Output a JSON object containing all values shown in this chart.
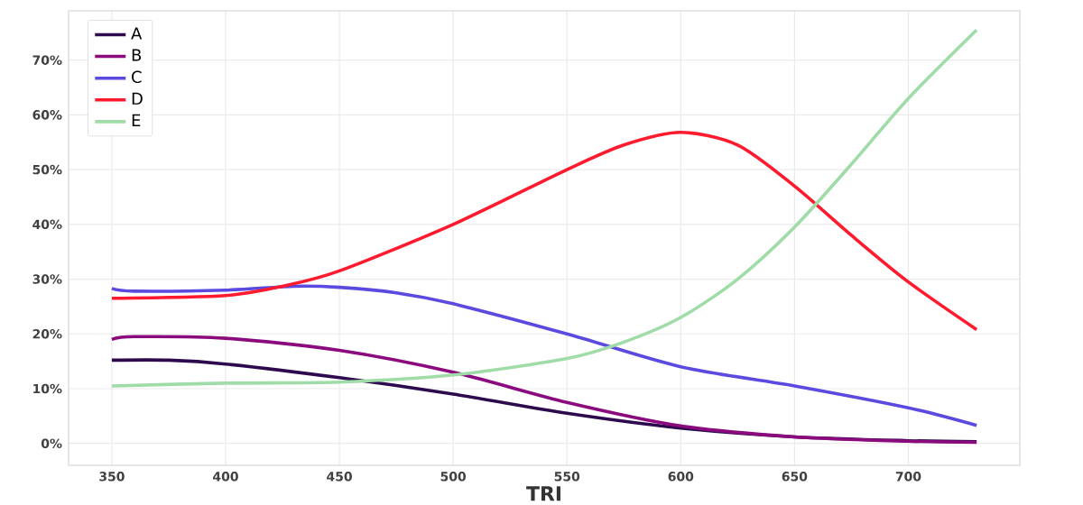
{
  "chart_data": {
    "type": "line",
    "xlabel": "TRI",
    "xlim": [
      331,
      749
    ],
    "ylim": [
      -4,
      79
    ],
    "xticks": [
      350,
      400,
      450,
      500,
      550,
      600,
      650,
      700
    ],
    "yticks": [
      {
        "value": 0,
        "label": "0%"
      },
      {
        "value": 10,
        "label": "10%"
      },
      {
        "value": 20,
        "label": "20%"
      },
      {
        "value": 30,
        "label": "30%"
      },
      {
        "value": 40,
        "label": "40%"
      },
      {
        "value": 50,
        "label": "50%"
      },
      {
        "value": 60,
        "label": "60%"
      },
      {
        "value": 70,
        "label": "70%"
      }
    ],
    "grid": true,
    "legend": "top left",
    "marker": "none",
    "line_style": "solid",
    "series": [
      {
        "name": "A",
        "color": "#2d0a4e",
        "x": [
          350,
          375,
          400,
          450,
          500,
          550,
          600,
          650,
          700,
          730
        ],
        "values": [
          15.2,
          15.2,
          14.5,
          12,
          9,
          5.5,
          2.8,
          1.2,
          0.5,
          0.3
        ]
      },
      {
        "name": "B",
        "color": "#8b0a7d",
        "x": [
          350,
          360,
          400,
          450,
          500,
          550,
          600,
          650,
          700,
          730
        ],
        "values": [
          19,
          19.5,
          19.2,
          17,
          13,
          7.5,
          3.2,
          1.2,
          0.4,
          0.2
        ]
      },
      {
        "name": "C",
        "color": "#5b4ae0",
        "x": [
          350,
          360,
          400,
          430,
          450,
          475,
          500,
          550,
          600,
          650,
          700,
          730
        ],
        "values": [
          28.3,
          27.8,
          28,
          28.7,
          28.5,
          27.5,
          25.5,
          20,
          14,
          10.5,
          6.5,
          3.3
        ]
      },
      {
        "name": "D",
        "color": "#ff1a2e",
        "x": [
          350,
          400,
          425,
          450,
          500,
          550,
          575,
          600,
          625,
          650,
          675,
          700,
          730
        ],
        "values": [
          26.5,
          27,
          28.7,
          31.5,
          40,
          50,
          54.5,
          56.8,
          54.5,
          47,
          38,
          29.5,
          20.8
        ]
      },
      {
        "name": "E",
        "color": "#a0dca8",
        "x": [
          350,
          400,
          450,
          500,
          550,
          575,
          600,
          625,
          650,
          675,
          700,
          730
        ],
        "values": [
          10.5,
          11,
          11.2,
          12.5,
          15.5,
          18.5,
          23,
          30,
          39.5,
          51,
          63,
          75.5
        ]
      }
    ]
  }
}
